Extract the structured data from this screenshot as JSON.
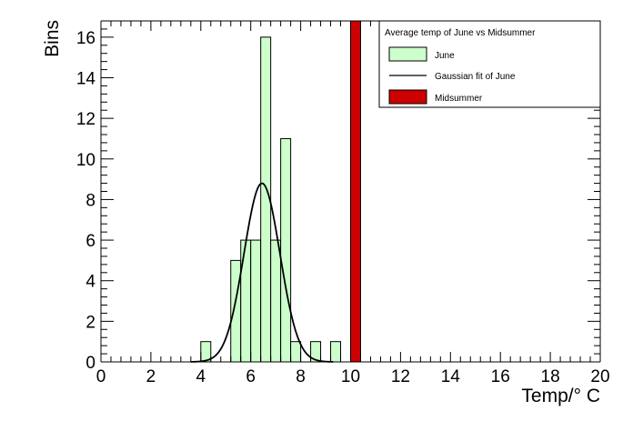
{
  "chart_data": {
    "type": "histogram",
    "xlabel": "Temp/° C",
    "ylabel": "Bins",
    "xlim": [
      0,
      20
    ],
    "ylim": [
      0,
      16.8
    ],
    "x_ticks": [
      "0",
      "2",
      "4",
      "6",
      "8",
      "10",
      "12",
      "14",
      "16",
      "18",
      "20"
    ],
    "y_ticks": [
      "0",
      "2",
      "4",
      "6",
      "8",
      "10",
      "12",
      "14",
      "16"
    ],
    "bin_width": 0.4,
    "series": [
      {
        "name": "June",
        "color": "#ccffcc",
        "bins": [
          {
            "x0": 4.0,
            "count": 1
          },
          {
            "x0": 5.2,
            "count": 5
          },
          {
            "x0": 5.6,
            "count": 6
          },
          {
            "x0": 6.0,
            "count": 6
          },
          {
            "x0": 6.4,
            "count": 16
          },
          {
            "x0": 6.8,
            "count": 6
          },
          {
            "x0": 7.2,
            "count": 11
          },
          {
            "x0": 7.6,
            "count": 1
          },
          {
            "x0": 8.4,
            "count": 1
          },
          {
            "x0": 9.2,
            "count": 1
          }
        ]
      },
      {
        "name": "Midsummer",
        "color": "#cc0000",
        "bins": [
          {
            "x0": 10.0,
            "count": 16.8
          }
        ]
      }
    ],
    "fit": {
      "name": "Gaussian fit of June",
      "color": "#000000",
      "amplitude": 8.8,
      "mean": 6.45,
      "sigma": 0.72
    },
    "legend": {
      "title": "Average temp of June vs Midsummer",
      "placement": "top-right",
      "entries": [
        "June",
        "Gaussian fit of June",
        "Midsummer"
      ]
    }
  }
}
